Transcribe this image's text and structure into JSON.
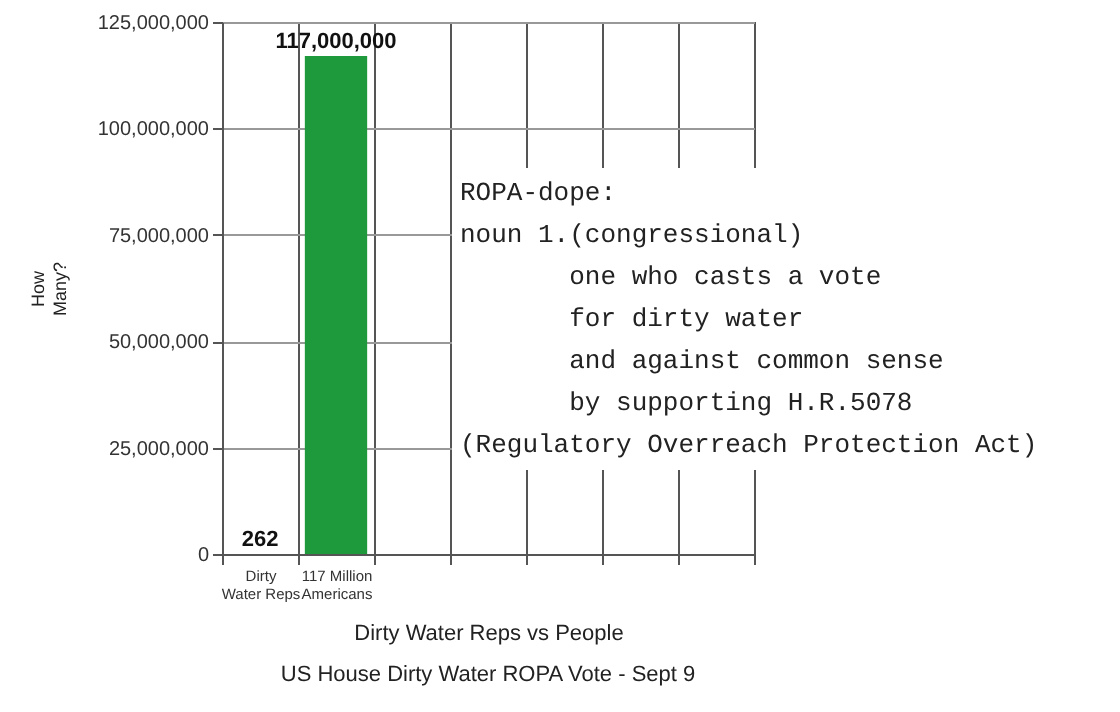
{
  "chart_data": {
    "type": "bar",
    "title": "US House Dirty Water ROPA Vote - Sept 9",
    "xlabel": "Dirty Water Reps vs People",
    "ylabel": "How Many?",
    "categories": [
      "Dirty Water Reps",
      "117 Million Americans",
      null,
      null,
      null,
      null,
      null
    ],
    "values": [
      262,
      117000000,
      null,
      null,
      null,
      null,
      null
    ],
    "color": "#1e9a3c",
    "ylim": [
      0,
      125000000
    ],
    "yticks": [
      0,
      {
        "value": 25000000,
        "label": "25,000,000"
      },
      {
        "value": 50000000,
        "label": "50,000,000"
      },
      {
        "value": 75000000,
        "label": "75,000,000"
      },
      {
        "value": 100000000,
        "label": "100,000,000"
      },
      {
        "value": 125000000,
        "label": "125,000,000"
      }
    ],
    "grid": true,
    "value_labels": [
      "262",
      "117,000,000",
      null,
      null,
      null,
      null,
      null
    ],
    "annotations": [
      "ROPA-dope:\nnoun 1.(congressional)\n       one who casts a vote\n       for dirty water\n       and against common sense\n       by supporting H.R.5078\n(Regulatory Overreach Protection Act)"
    ]
  }
}
